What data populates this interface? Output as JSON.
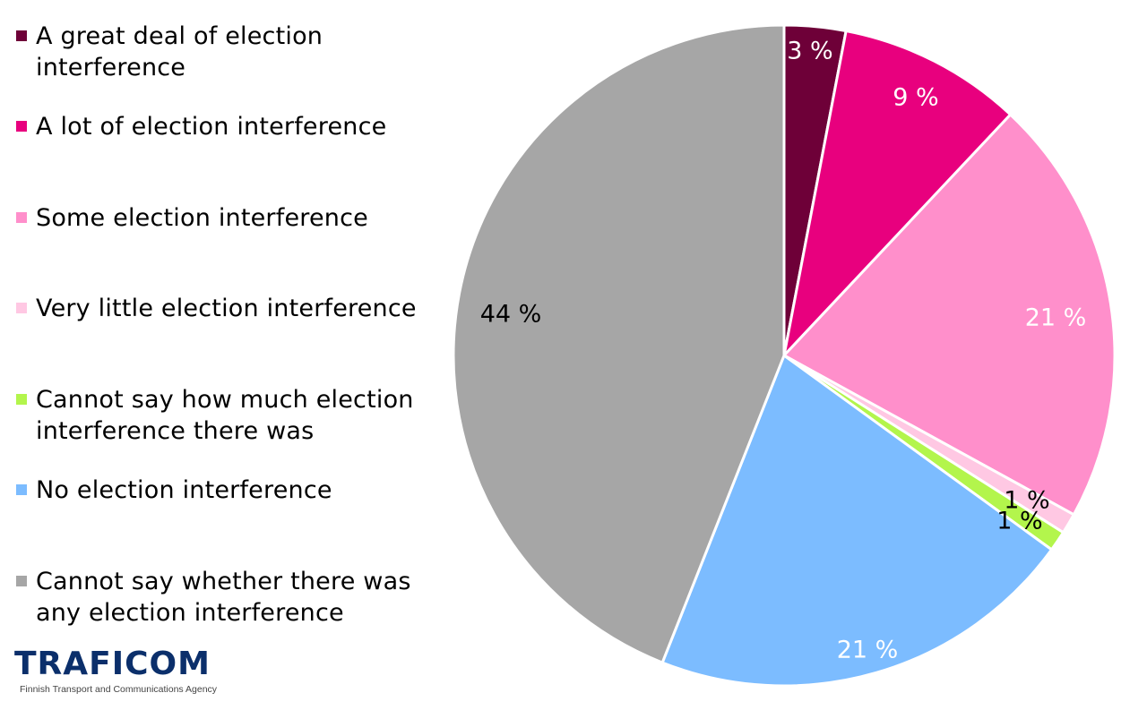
{
  "legend": {
    "items": [
      {
        "label_line1": "A great deal of election",
        "label_line2": "interference",
        "color": "#6e0038"
      },
      {
        "label_line1": "A lot of election interference",
        "label_line2": "",
        "color": "#e8007e"
      },
      {
        "label_line1": "Some election interference",
        "label_line2": "",
        "color": "#ff8fcb"
      },
      {
        "label_line1": "Very little election interference",
        "label_line2": "",
        "color": "#ffc8e3"
      },
      {
        "label_line1": "Cannot say how much election",
        "label_line2": "interference there was",
        "color": "#b3f54c"
      },
      {
        "label_line1": "No election interference",
        "label_line2": "",
        "color": "#7cbcff"
      },
      {
        "label_line1": "Cannot say whether there was",
        "label_line2": "any election interference",
        "color": "#a6a6a6"
      }
    ]
  },
  "logo": {
    "name": "TRAFICOM",
    "subtitle": "Finnish Transport and Communications Agency"
  },
  "chart_data": {
    "type": "pie",
    "title": "",
    "categories": [
      "A great deal of election interference",
      "A lot of election interference",
      "Some election interference",
      "Very little election interference",
      "Cannot say how much election interference there was",
      "No election interference",
      "Cannot say whether there was any election interference"
    ],
    "values": [
      3,
      9,
      21,
      1,
      1,
      21,
      44
    ],
    "labels": [
      "3 %",
      "9 %",
      "21 %",
      "1 %",
      "1 %",
      "21 %",
      "44 %"
    ],
    "colors": [
      "#6e0038",
      "#e8007e",
      "#ff8fcb",
      "#ffc8e3",
      "#b3f54c",
      "#7cbcff",
      "#a6a6a6"
    ],
    "label_colors": [
      "#ffffff",
      "#ffffff",
      "#ffffff",
      "#000000",
      "#000000",
      "#ffffff",
      "#000000"
    ],
    "legend_position": "left",
    "start_angle": "top, clockwise"
  }
}
